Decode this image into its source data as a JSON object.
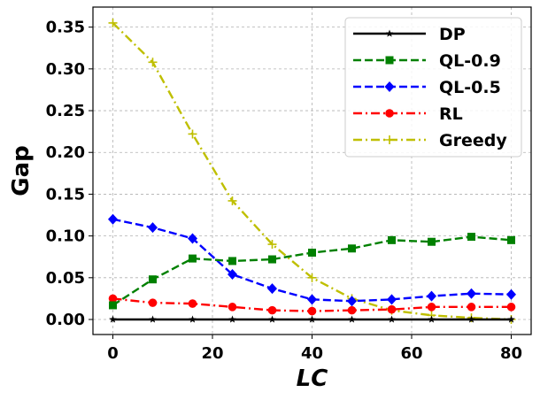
{
  "chart_data": {
    "type": "line",
    "title": "",
    "xlabel": "LC",
    "ylabel": "Gap",
    "xlim": [
      -4,
      84
    ],
    "ylim": [
      -0.018,
      0.374
    ],
    "xticks": [
      0,
      20,
      40,
      60,
      80
    ],
    "xtick_labels": [
      "0",
      "20",
      "40",
      "60",
      "80"
    ],
    "yticks": [
      0.0,
      0.05,
      0.1,
      0.15,
      0.2,
      0.25,
      0.3,
      0.35
    ],
    "ytick_labels": [
      "0.00",
      "0.05",
      "0.10",
      "0.15",
      "0.20",
      "0.25",
      "0.30",
      "0.35"
    ],
    "grid": true,
    "legend_position": "top-right",
    "x": [
      0,
      8,
      16,
      24,
      32,
      40,
      48,
      56,
      64,
      72,
      80
    ],
    "series": [
      {
        "name": "DP",
        "color": "#000000",
        "dash": "solid",
        "marker": "star",
        "values": [
          0.0,
          0.0,
          0.0,
          0.0,
          0.0,
          0.0,
          0.0,
          0.0,
          0.0,
          0.0,
          0.0
        ]
      },
      {
        "name": "QL-0.9",
        "color": "#008000",
        "dash": "dashed",
        "marker": "square",
        "values": [
          0.017,
          0.048,
          0.073,
          0.07,
          0.072,
          0.08,
          0.085,
          0.095,
          0.093,
          0.099,
          0.095
        ]
      },
      {
        "name": "QL-0.5",
        "color": "#0000ff",
        "dash": "dashed",
        "marker": "diamond",
        "values": [
          0.12,
          0.11,
          0.097,
          0.054,
          0.037,
          0.024,
          0.022,
          0.024,
          0.028,
          0.031,
          0.03
        ]
      },
      {
        "name": "RL",
        "color": "#ff0000",
        "dash": "dashdot",
        "marker": "circle",
        "values": [
          0.025,
          0.02,
          0.019,
          0.015,
          0.011,
          0.01,
          0.011,
          0.012,
          0.015,
          0.015,
          0.015
        ]
      },
      {
        "name": "Greedy",
        "color": "#bfbf00",
        "dash": "dashdot",
        "marker": "plus",
        "values": [
          0.355,
          0.308,
          0.222,
          0.142,
          0.09,
          0.05,
          0.025,
          0.011,
          0.005,
          0.002,
          0.0
        ]
      }
    ]
  }
}
